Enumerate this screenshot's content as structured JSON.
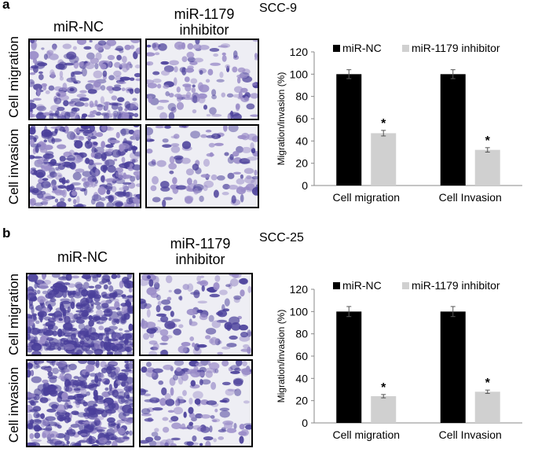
{
  "panels": [
    {
      "letter": "a",
      "cell_line": "SCC-9",
      "image_columns": [
        "miR-NC",
        "miR-1179\ninhibitor"
      ],
      "image_rows": [
        "Cell migration",
        "Cell invasion"
      ]
    },
    {
      "letter": "b",
      "cell_line": "SCC-25",
      "image_columns": [
        "miR-NC",
        "miR-1179\ninhibitor"
      ],
      "image_rows": [
        "Cell migration",
        "Cell invasion"
      ]
    }
  ],
  "colors": {
    "miR_NC": "#000000",
    "inhibitor": "#d0d0d0",
    "stain_dark": "#4a3f9a",
    "stain_light": "#9a8cc8",
    "background_light": "#eeeef4"
  },
  "chart_data": [
    {
      "type": "bar",
      "categories": [
        "Cell migration",
        "Cell Invasion"
      ],
      "series": [
        {
          "name": "miR-NC",
          "values": [
            100,
            100
          ],
          "errors": [
            4,
            4
          ]
        },
        {
          "name": "miR-1179 inhibitor",
          "values": [
            47,
            32
          ],
          "errors": [
            2.5,
            2
          ],
          "significance": [
            "*",
            "*"
          ]
        }
      ],
      "ylabel": "Migration/invasion  (%)",
      "ylim": [
        0,
        120
      ],
      "yticks": [
        0,
        20,
        40,
        60,
        80,
        100,
        120
      ],
      "legend": "top"
    },
    {
      "type": "bar",
      "categories": [
        "Cell migration",
        "Cell Invasion"
      ],
      "series": [
        {
          "name": "miR-NC",
          "values": [
            100,
            100
          ],
          "errors": [
            4.5,
            4.5
          ]
        },
        {
          "name": "miR-1179 inhibitor",
          "values": [
            24,
            28
          ],
          "errors": [
            1.5,
            1.5
          ],
          "significance": [
            "*",
            "*"
          ]
        }
      ],
      "ylabel": "Migration/invasion  (%)",
      "ylim": [
        0,
        120
      ],
      "yticks": [
        0,
        20,
        40,
        60,
        80,
        100,
        120
      ],
      "legend": "top"
    }
  ]
}
